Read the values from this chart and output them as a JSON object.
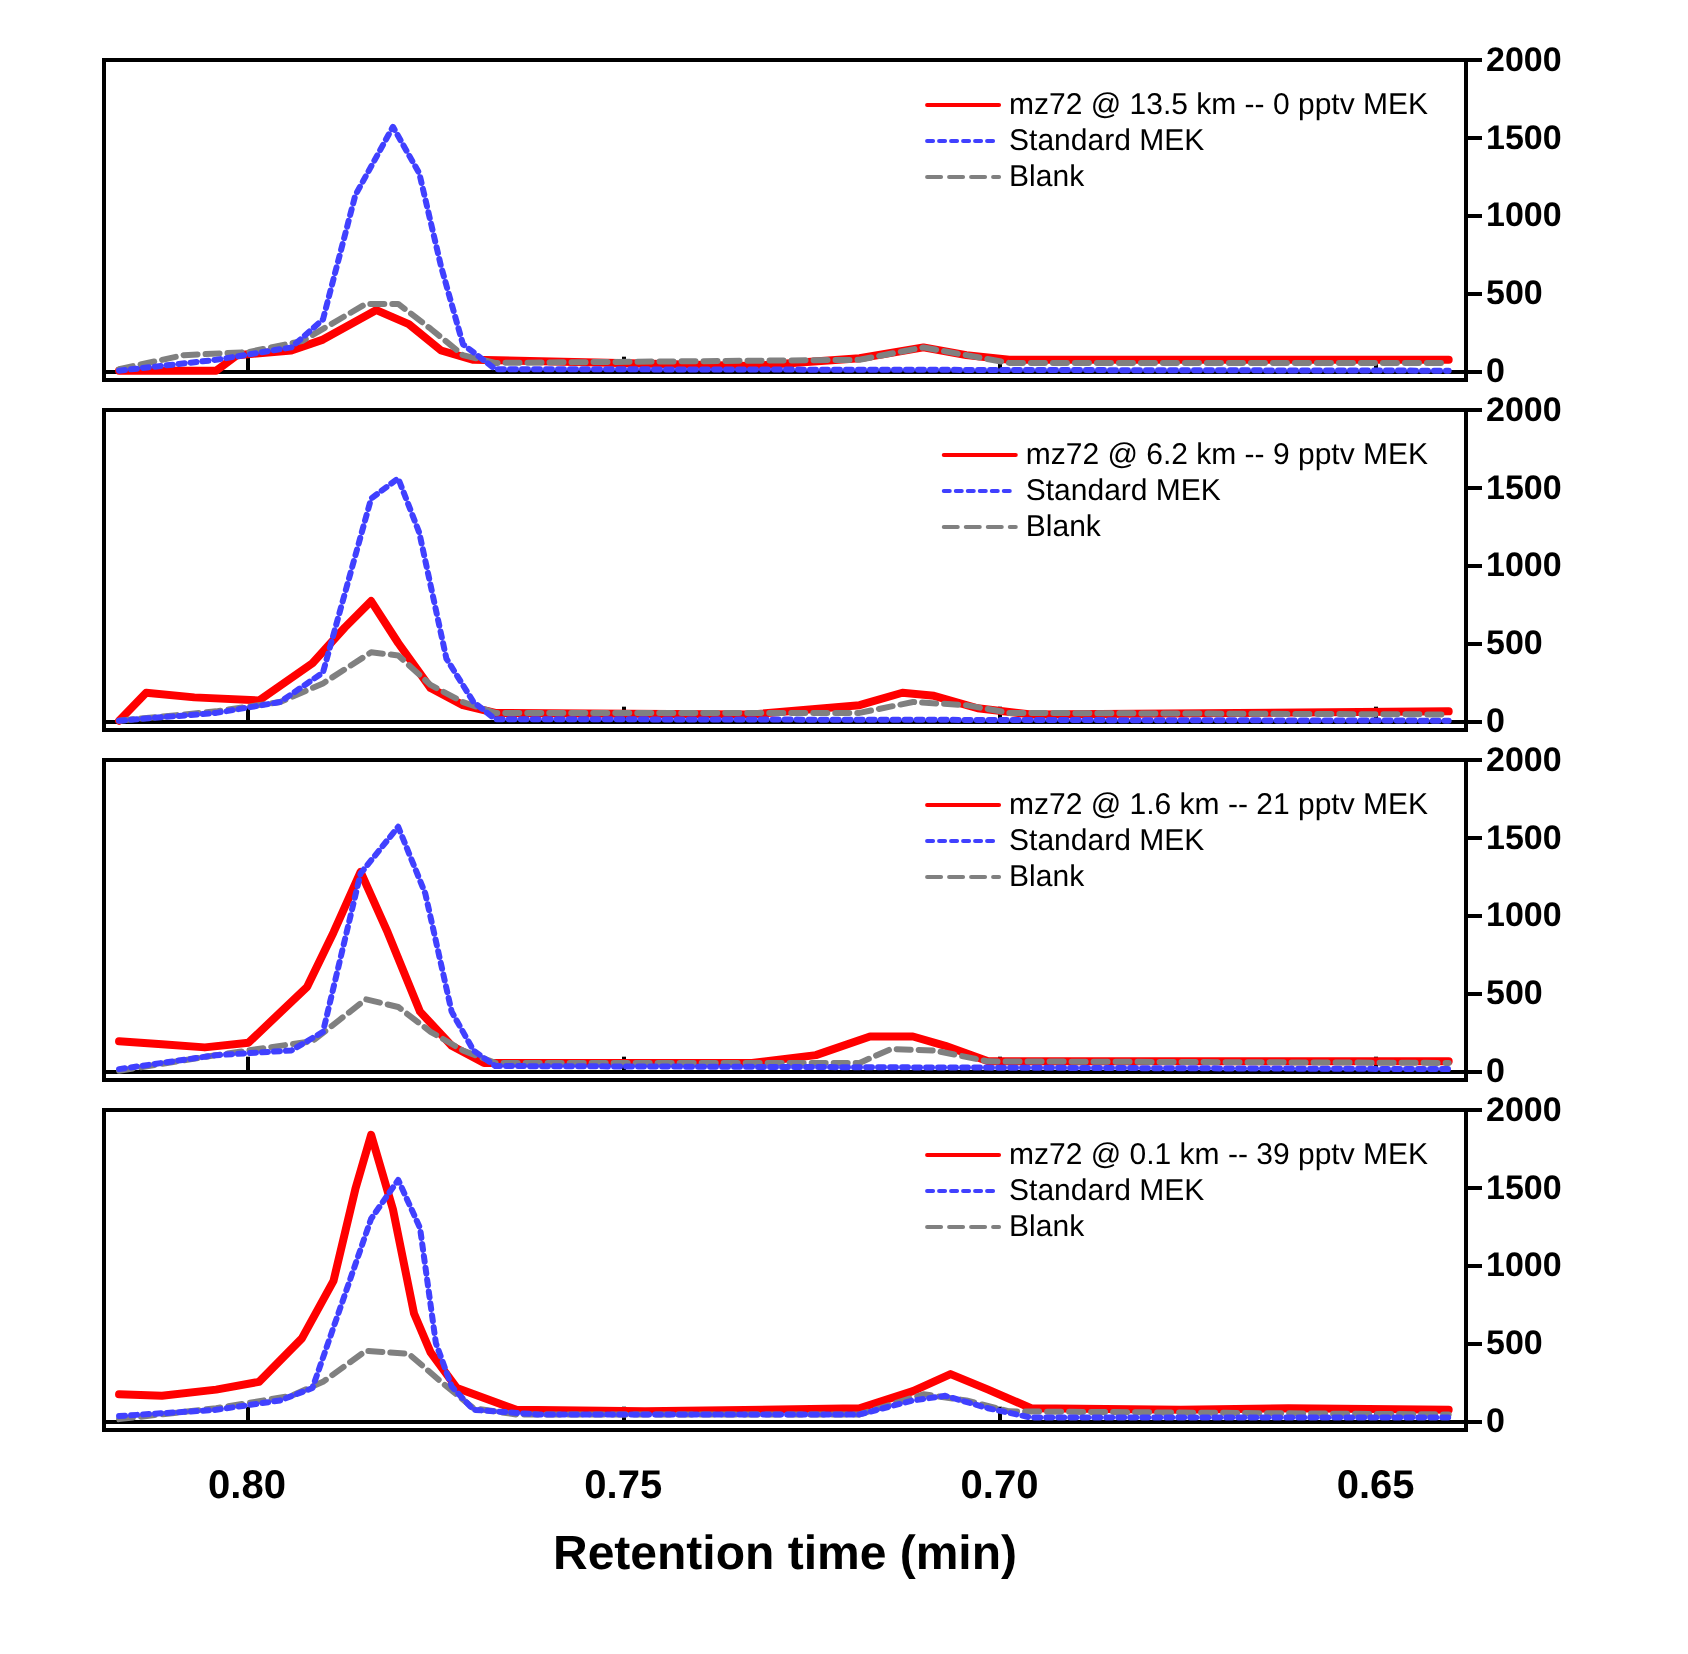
{
  "chart_data": [
    {
      "type": "line",
      "xlim": [
        0.819,
        0.638
      ],
      "ylim": [
        -60,
        2000
      ],
      "xticks": [
        {
          "value": 0.65,
          "label": null
        },
        {
          "value": 0.7,
          "label": null
        },
        {
          "value": 0.75,
          "label": null
        },
        {
          "value": 0.8,
          "label": null
        }
      ],
      "yticks": [
        0,
        500,
        1000,
        1500,
        2000
      ],
      "tick_labels": "y",
      "legend": "top right",
      "marker": "none",
      "series": [
        {
          "name": "mz72 @ 13.5 km -- 0 pptv MEK",
          "color": "#ff0000",
          "line_style": "solid",
          "x": [
            0.817,
            0.8041,
            0.8013,
            0.7941,
            0.7899,
            0.7828,
            0.7785,
            0.7742,
            0.7699,
            0.7329,
            0.7186,
            0.7101,
            0.7044,
            0.6987,
            0.6403
          ],
          "values": [
            0,
            0,
            100,
            130,
            200,
            390,
            300,
            130,
            70,
            30,
            80,
            150,
            100,
            70,
            70
          ]
        },
        {
          "name": "Standard MEK",
          "color": "#4040ff",
          "line_style": "dotted",
          "x": [
            0.817,
            0.8041,
            0.7941,
            0.7899,
            0.7856,
            0.7806,
            0.7771,
            0.7742,
            0.7713,
            0.767,
            0.6403
          ],
          "values": [
            0,
            70,
            150,
            330,
            1130,
            1570,
            1270,
            670,
            170,
            10,
            0
          ]
        },
        {
          "name": "Blank",
          "color": "#808080",
          "line_style": "dashed",
          "x": [
            0.817,
            0.8084,
            0.7998,
            0.7927,
            0.7842,
            0.7799,
            0.7756,
            0.7713,
            0.767,
            0.7186,
            0.7101,
            0.7044,
            0.6987,
            0.6403
          ],
          "values": [
            10,
            100,
            120,
            190,
            430,
            430,
            270,
            100,
            50,
            70,
            150,
            100,
            50,
            50
          ]
        }
      ]
    },
    {
      "type": "line",
      "xlim": [
        0.819,
        0.638
      ],
      "ylim": [
        -60,
        2000
      ],
      "xticks": [
        {
          "value": 0.65,
          "label": null
        },
        {
          "value": 0.7,
          "label": null
        },
        {
          "value": 0.75,
          "label": null
        },
        {
          "value": 0.8,
          "label": null
        }
      ],
      "yticks": [
        0,
        500,
        1000,
        1500,
        2000
      ],
      "tick_labels": "y",
      "legend": "top right",
      "marker": "none",
      "series": [
        {
          "name": "mz72 @ 6.2 km -- 9 pptv MEK",
          "color": "#ff0000",
          "line_style": "solid",
          "x": [
            0.817,
            0.8134,
            0.807,
            0.7984,
            0.7913,
            0.787,
            0.7835,
            0.7799,
            0.7756,
            0.7713,
            0.767,
            0.7329,
            0.7186,
            0.7129,
            0.7087,
            0.7029,
            0.6958,
            0.6403
          ],
          "values": [
            0,
            180,
            150,
            130,
            370,
            600,
            770,
            500,
            210,
            100,
            50,
            40,
            100,
            180,
            160,
            80,
            40,
            60
          ]
        },
        {
          "name": "Standard MEK",
          "color": "#4040ff",
          "line_style": "dotted",
          "x": [
            0.817,
            0.8041,
            0.7956,
            0.7899,
            0.7835,
            0.7799,
            0.7771,
            0.7735,
            0.7699,
            0.767,
            0.6403
          ],
          "values": [
            0,
            50,
            120,
            310,
            1430,
            1560,
            1210,
            400,
            120,
            10,
            0
          ]
        },
        {
          "name": "Blank",
          "color": "#808080",
          "line_style": "dashed",
          "x": [
            0.817,
            0.8041,
            0.7956,
            0.7899,
            0.7835,
            0.7799,
            0.7756,
            0.7713,
            0.767,
            0.7186,
            0.7115,
            0.7044,
            0.6987,
            0.6403
          ],
          "values": [
            0,
            60,
            120,
            240,
            440,
            420,
            230,
            120,
            50,
            50,
            120,
            100,
            50,
            40
          ]
        }
      ]
    },
    {
      "type": "line",
      "xlim": [
        0.819,
        0.638
      ],
      "ylim": [
        -60,
        2000
      ],
      "xticks": [
        {
          "value": 0.65,
          "label": null
        },
        {
          "value": 0.7,
          "label": null
        },
        {
          "value": 0.75,
          "label": null
        },
        {
          "value": 0.8,
          "label": null
        }
      ],
      "yticks": [
        0,
        500,
        1000,
        1500,
        2000
      ],
      "tick_labels": "y",
      "legend": "top right",
      "marker": "none",
      "series": [
        {
          "name": "mz72 @ 1.6 km -- 21 pptv MEK",
          "color": "#ff0000",
          "line_style": "solid",
          "x": [
            0.817,
            0.8113,
            0.8056,
            0.7998,
            0.792,
            0.7885,
            0.7849,
            0.7813,
            0.777,
            0.7728,
            0.7685,
            0.7329,
            0.7244,
            0.7172,
            0.7115,
            0.7072,
            0.7015,
            0.6403
          ],
          "values": [
            190,
            170,
            150,
            180,
            540,
            890,
            1280,
            890,
            380,
            160,
            50,
            50,
            100,
            220,
            220,
            160,
            60,
            60
          ]
        },
        {
          "name": "Standard MEK",
          "color": "#4040ff",
          "line_style": "dotted",
          "x": [
            0.817,
            0.8041,
            0.7941,
            0.7899,
            0.7849,
            0.7799,
            0.7763,
            0.7728,
            0.7699,
            0.767,
            0.6403
          ],
          "values": [
            10,
            100,
            130,
            250,
            1270,
            1570,
            1140,
            380,
            130,
            30,
            10
          ]
        },
        {
          "name": "Blank",
          "color": "#808080",
          "line_style": "dashed",
          "x": [
            0.817,
            0.8041,
            0.7913,
            0.7842,
            0.7799,
            0.7756,
            0.7713,
            0.767,
            0.7186,
            0.7144,
            0.7087,
            0.7015,
            0.6403
          ],
          "values": [
            0,
            100,
            190,
            460,
            410,
            250,
            130,
            50,
            50,
            140,
            130,
            60,
            50
          ]
        }
      ]
    },
    {
      "type": "line",
      "xlim": [
        0.819,
        0.638
      ],
      "ylim": [
        -60,
        2000
      ],
      "xticks": [
        {
          "value": 0.65,
          "label": "0.65"
        },
        {
          "value": 0.7,
          "label": "0.70"
        },
        {
          "value": 0.75,
          "label": "0.75"
        },
        {
          "value": 0.8,
          "label": "0.80"
        }
      ],
      "yticks": [
        0,
        500,
        1000,
        1500,
        2000
      ],
      "xlabel": "Retention time (min)",
      "legend": "top right",
      "marker": "none",
      "series": [
        {
          "name": "mz72 @ 0.1 km -- 39 pptv MEK",
          "color": "#ff0000",
          "line_style": "solid",
          "x": [
            0.817,
            0.8113,
            0.8041,
            0.7984,
            0.7927,
            0.7885,
            0.7856,
            0.7835,
            0.7806,
            0.7778,
            0.7756,
            0.7721,
            0.7642,
            0.7471,
            0.7186,
            0.7115,
            0.7065,
            0.7015,
            0.6958,
            0.6759,
            0.6616,
            0.6403
          ],
          "values": [
            170,
            160,
            200,
            250,
            530,
            900,
            1490,
            1840,
            1360,
            690,
            440,
            210,
            70,
            60,
            80,
            190,
            300,
            200,
            80,
            70,
            80,
            70
          ]
        },
        {
          "name": "Standard MEK",
          "color": "#4040ff",
          "line_style": "dotted",
          "x": [
            0.817,
            0.8041,
            0.7956,
            0.7913,
            0.787,
            0.7835,
            0.7799,
            0.777,
            0.7749,
            0.7728,
            0.7699,
            0.7614,
            0.7186,
            0.7115,
            0.7072,
            0.7015,
            0.6958,
            0.6403
          ],
          "values": [
            30,
            70,
            130,
            210,
            810,
            1300,
            1550,
            1240,
            500,
            220,
            70,
            40,
            40,
            130,
            160,
            80,
            20,
            20
          ]
        },
        {
          "name": "Blank",
          "color": "#808080",
          "line_style": "dashed",
          "x": [
            0.817,
            0.8041,
            0.7941,
            0.7899,
            0.7842,
            0.7785,
            0.7742,
            0.7699,
            0.7642,
            0.7186,
            0.7101,
            0.7044,
            0.6987,
            0.6403
          ],
          "values": [
            10,
            80,
            160,
            250,
            450,
            430,
            250,
            80,
            40,
            40,
            170,
            130,
            60,
            40
          ]
        }
      ]
    }
  ]
}
